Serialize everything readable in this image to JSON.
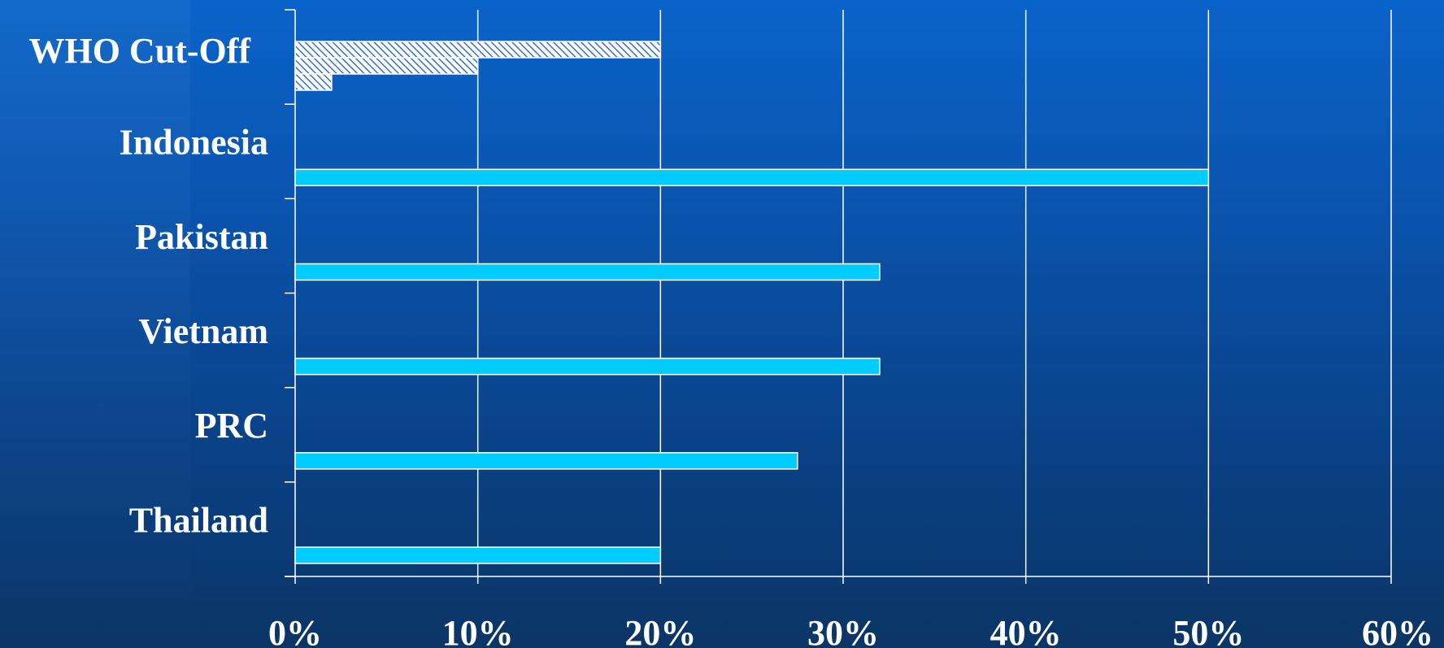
{
  "chart_data": {
    "type": "bar",
    "orientation": "horizontal",
    "title": "",
    "xlabel": "",
    "ylabel": "",
    "xlim": [
      0,
      60
    ],
    "x_ticks": [
      "0%",
      "10%",
      "20%",
      "30%",
      "40%",
      "50%",
      "60%"
    ],
    "x_tick_values": [
      0,
      10,
      20,
      30,
      40,
      50,
      60
    ],
    "grid": "vertical",
    "categories": [
      {
        "label": "WHO Cut-Off",
        "values": [
          20,
          10,
          2
        ],
        "style": "hatched"
      },
      {
        "label": "Indonesia",
        "values": [
          50
        ],
        "style": "solid"
      },
      {
        "label": "Pakistan",
        "values": [
          32
        ],
        "style": "solid"
      },
      {
        "label": "Vietnam",
        "values": [
          32
        ],
        "style": "solid"
      },
      {
        "label": "PRC",
        "values": [
          27.5
        ],
        "style": "solid"
      },
      {
        "label": "Thailand",
        "values": [
          20
        ],
        "style": "solid"
      }
    ],
    "colors": {
      "bar_fill": "#00ccff",
      "bar_stroke": "#ffffff",
      "hatch_fill": "#ffffff",
      "hatch_line": "#3a6fc0",
      "grid": "#ffffff",
      "text": "#ffffff"
    }
  }
}
